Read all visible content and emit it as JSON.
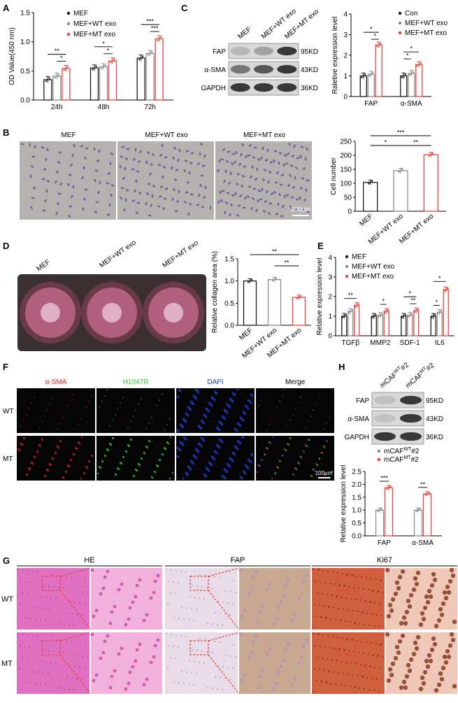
{
  "panels": {
    "A": {
      "label": "A",
      "chart_data": {
        "type": "bar",
        "categories": [
          "24h",
          "48h",
          "72h"
        ],
        "ylabel": "OD Value(450 nm)",
        "ylim": [
          0,
          1.5
        ],
        "yticks": [
          "0.0",
          "0.5",
          "1.0",
          "1.5"
        ],
        "legend": [
          "MEF",
          "MEF+WT exo",
          "MEF+MT exo"
        ],
        "series": [
          {
            "name": "MEF",
            "values": [
              0.35,
              0.55,
              0.72
            ]
          },
          {
            "name": "MEF+WT exo",
            "values": [
              0.41,
              0.57,
              0.8
            ]
          },
          {
            "name": "MEF+MT exo",
            "values": [
              0.54,
              0.67,
              1.05
            ]
          }
        ],
        "sig": [
          "**",
          "*",
          "*",
          "*",
          "***",
          "***"
        ]
      }
    },
    "B": {
      "label": "B",
      "image_titles": [
        "MEF",
        "MEF+WT exo",
        "MEF+MT exo"
      ],
      "scale": "200μm",
      "chart_data": {
        "type": "bar",
        "categories": [
          "MEF",
          "MEF+WT exo",
          "MEF+MT exo"
        ],
        "values": [
          103,
          145,
          202
        ],
        "ylabel": "Cell number",
        "ylim": [
          0,
          250
        ],
        "yticks": [
          "0",
          "50",
          "100",
          "150",
          "200",
          "250"
        ],
        "sig": [
          "***",
          "*",
          "**"
        ]
      }
    },
    "C": {
      "label": "C",
      "blot_lanes": [
        "MEF",
        "MEF+WT exo",
        "MEF+MT exo"
      ],
      "blot_rows": [
        {
          "name": "FAP",
          "size": "95KD"
        },
        {
          "name": "α-SMA",
          "size": "43KD"
        },
        {
          "name": "GAPDH",
          "size": "36KD"
        }
      ],
      "chart_data": {
        "type": "bar",
        "categories": [
          "FAP",
          "α-SMA"
        ],
        "ylabel": "Raletive expression level",
        "ylim": [
          0,
          4
        ],
        "yticks": [
          "0",
          "1",
          "2",
          "3",
          "4"
        ],
        "legend": [
          "Con",
          "MEF+WT exo",
          "MEF+MT exo"
        ],
        "series": [
          {
            "name": "Con",
            "values": [
              1.0,
              1.0
            ]
          },
          {
            "name": "MEF+WT exo",
            "values": [
              1.08,
              1.12
            ]
          },
          {
            "name": "MEF+MT exo",
            "values": [
              2.5,
              1.55
            ]
          }
        ],
        "sig": [
          "*",
          "*",
          "*",
          "*"
        ]
      }
    },
    "D": {
      "label": "D",
      "image_titles": [
        "MEF",
        "MEF+WT exo",
        "MEF+MT exo"
      ],
      "chart_data": {
        "type": "bar",
        "categories": [
          "MEF",
          "MEF+WT exo",
          "MEF+MT exo"
        ],
        "values": [
          1.0,
          1.03,
          0.63
        ],
        "ylabel": "Relative collagen area (%)",
        "ylim": [
          0,
          1.5
        ],
        "yticks": [
          "0.0",
          "0.5",
          "1.0",
          "1.5"
        ],
        "sig": [
          "**",
          "**"
        ]
      }
    },
    "E": {
      "label": "E",
      "chart_data": {
        "type": "bar",
        "categories": [
          "TGFβ",
          "MMP2",
          "SDF-1",
          "IL6"
        ],
        "ylabel": "Relative expression level",
        "ylim": [
          0,
          4
        ],
        "yticks": [
          "0",
          "1",
          "2",
          "3",
          "4"
        ],
        "legend": [
          "MEF",
          "MEF+WT exo",
          "MEF+MT exo"
        ],
        "series": [
          {
            "name": "MEF",
            "values": [
              1.0,
              1.0,
              1.0,
              1.0
            ]
          },
          {
            "name": "MEF+WT exo",
            "values": [
              1.25,
              1.05,
              1.05,
              1.2
            ]
          },
          {
            "name": "MEF+MT exo",
            "values": [
              1.55,
              1.25,
              1.28,
              2.35
            ]
          }
        ],
        "sig": [
          "**",
          "*",
          "*",
          "**",
          "*",
          "*"
        ]
      }
    },
    "F": {
      "label": "F",
      "columns": [
        "α-SMA",
        "H1047R",
        "DAPI",
        "Merge"
      ],
      "rows": [
        "WT",
        "MT"
      ],
      "scale": "100μm"
    },
    "G": {
      "label": "G",
      "groups": [
        "HE",
        "FAP",
        "Ki67"
      ],
      "rows": [
        "WT",
        "MT"
      ]
    },
    "H": {
      "label": "H",
      "blot_lanes": [
        "mCAFWT#2",
        "mCAFMT#2"
      ],
      "blot_lane_parts": [
        [
          "mCAF",
          "WT",
          "#2"
        ],
        [
          "mCAF",
          "MT",
          "#2"
        ]
      ],
      "blot_rows": [
        {
          "name": "FAP",
          "size": "95KD"
        },
        {
          "name": "α-SMA",
          "size": "43KD"
        },
        {
          "name": "GAPDH",
          "size": "36KD"
        }
      ],
      "chart_data": {
        "type": "bar",
        "categories": [
          "FAP",
          "α-SMA"
        ],
        "ylabel": "Relative expression level",
        "ylim": [
          0,
          2.5
        ],
        "yticks": [
          "0.0",
          "0.5",
          "1.0",
          "1.5",
          "2.0",
          "2.5"
        ],
        "legend": [
          "mCAFWT#2",
          "mCAFMT#2"
        ],
        "series": [
          {
            "name": "mCAFWT#2",
            "values": [
              1.0,
              1.0
            ]
          },
          {
            "name": "mCAFMT#2",
            "values": [
              1.87,
              1.63
            ]
          }
        ],
        "sig": [
          "***",
          "**"
        ]
      }
    }
  },
  "colors": {
    "black": "#1a1a1a",
    "gray": "#8a8a8a",
    "red": "#e8423a",
    "red_light": "#f08070",
    "fluor_red": "#e02020",
    "fluor_green": "#30c830",
    "fluor_blue": "#1e3cc8"
  }
}
